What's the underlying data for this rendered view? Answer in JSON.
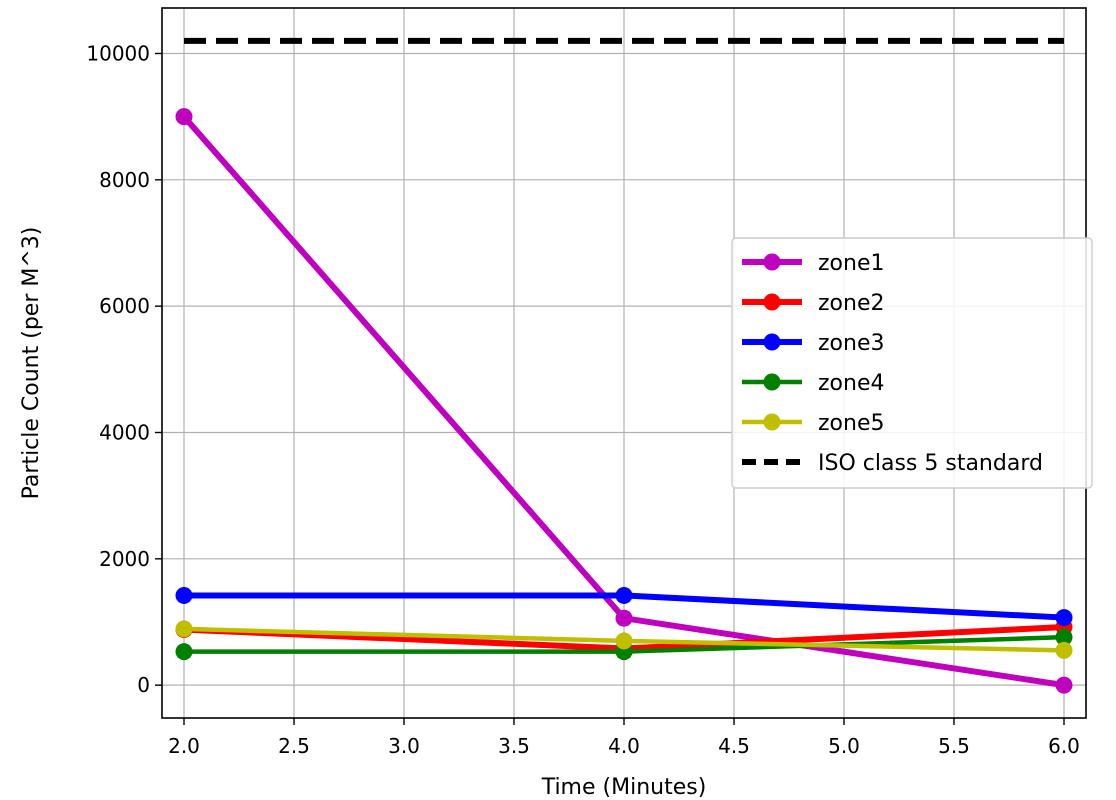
{
  "chart_data": {
    "type": "line",
    "title": "",
    "xlabel": "Time (Minutes)",
    "ylabel": "Particle Count (per M^3)",
    "x": [
      2.0,
      4.0,
      6.0
    ],
    "xlim": [
      1.9,
      6.1
    ],
    "ylim": [
      -520,
      10720
    ],
    "xticks": [
      2.0,
      2.5,
      3.0,
      3.5,
      4.0,
      4.5,
      5.0,
      5.5,
      6.0
    ],
    "xtick_labels": [
      "2.0",
      "2.5",
      "3.0",
      "3.5",
      "4.0",
      "4.5",
      "5.0",
      "5.5",
      "6.0"
    ],
    "yticks": [
      0,
      2000,
      4000,
      6000,
      8000,
      10000
    ],
    "ytick_labels": [
      "0",
      "2000",
      "4000",
      "6000",
      "8000",
      "10000"
    ],
    "grid": true,
    "legend_position": "center-right",
    "series": [
      {
        "name": "zone1",
        "values": [
          9000,
          1060,
          0
        ],
        "color": "#bf00bf",
        "marker": "circle",
        "style": "solid"
      },
      {
        "name": "zone2",
        "values": [
          880,
          580,
          920
        ],
        "color": "#ff0000",
        "marker": "circle",
        "style": "solid"
      },
      {
        "name": "zone3",
        "values": [
          1420,
          1420,
          1070
        ],
        "color": "#0000ff",
        "marker": "circle",
        "style": "solid"
      },
      {
        "name": "zone4",
        "values": [
          530,
          530,
          760
        ],
        "color": "#008000",
        "marker": "circle",
        "style": "solid"
      },
      {
        "name": "zone5",
        "values": [
          890,
          700,
          550
        ],
        "color": "#bfbf00",
        "marker": "circle",
        "style": "solid"
      },
      {
        "name": "ISO class 5 standard",
        "values": [
          10200,
          10200,
          10200
        ],
        "color": "#000000",
        "marker": "none",
        "style": "dashed"
      }
    ]
  }
}
